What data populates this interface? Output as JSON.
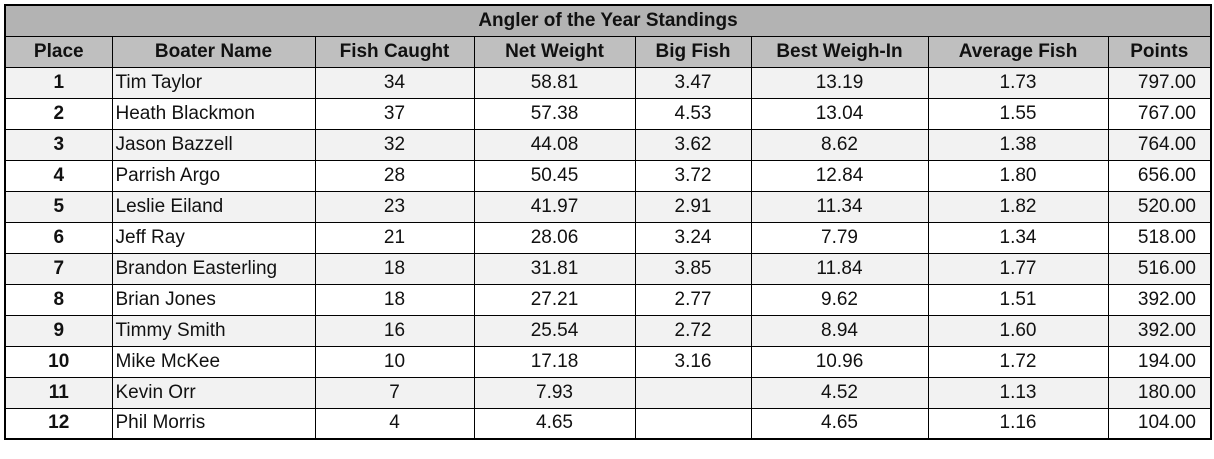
{
  "table": {
    "title": "Angler of the Year Standings",
    "header": [
      "Place",
      "Boater Name",
      "Fish Caught",
      "Net Weight",
      "Big Fish",
      "Best Weigh-In",
      "Average Fish",
      "Points"
    ],
    "rows": [
      [
        "1",
        "Tim Taylor",
        "34",
        "58.81",
        "3.47",
        "13.19",
        "1.73",
        "797.00"
      ],
      [
        "2",
        "Heath Blackmon",
        "37",
        "57.38",
        "4.53",
        "13.04",
        "1.55",
        "767.00"
      ],
      [
        "3",
        "Jason Bazzell",
        "32",
        "44.08",
        "3.62",
        "8.62",
        "1.38",
        "764.00"
      ],
      [
        "4",
        "Parrish Argo",
        "28",
        "50.45",
        "3.72",
        "12.84",
        "1.80",
        "656.00"
      ],
      [
        "5",
        "Leslie Eiland",
        "23",
        "41.97",
        "2.91",
        "11.34",
        "1.82",
        "520.00"
      ],
      [
        "6",
        "Jeff Ray",
        "21",
        "28.06",
        "3.24",
        "7.79",
        "1.34",
        "518.00"
      ],
      [
        "7",
        "Brandon Easterling",
        "18",
        "31.81",
        "3.85",
        "11.84",
        "1.77",
        "516.00"
      ],
      [
        "8",
        "Brian Jones",
        "18",
        "27.21",
        "2.77",
        "9.62",
        "1.51",
        "392.00"
      ],
      [
        "9",
        "Timmy Smith",
        "16",
        "25.54",
        "2.72",
        "8.94",
        "1.60",
        "392.00"
      ],
      [
        "10",
        "Mike McKee",
        "10",
        "17.18",
        "3.16",
        "10.96",
        "1.72",
        "194.00"
      ],
      [
        "11",
        "Kevin Orr",
        "7",
        "7.93",
        null,
        "4.52",
        "1.13",
        "180.00"
      ],
      [
        "12",
        "Phil Morris",
        "4",
        "4.65",
        null,
        "4.65",
        "1.16",
        "104.00"
      ]
    ]
  }
}
